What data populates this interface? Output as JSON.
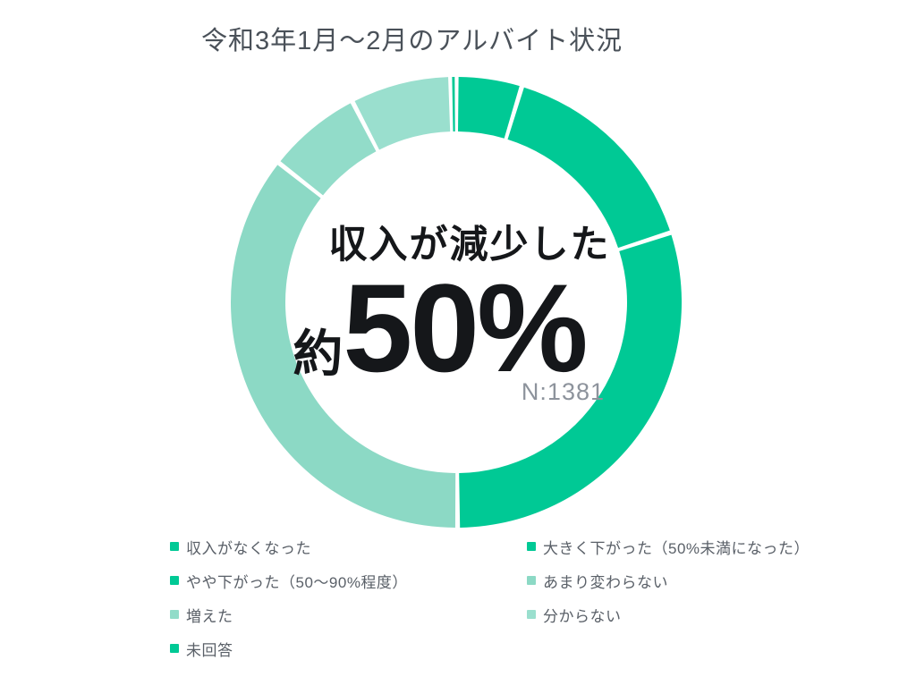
{
  "chart_data": {
    "type": "pie",
    "subtype": "donut",
    "title": "令和3年1月〜2月のアルバイト状況",
    "center": {
      "line1": "収入が減少した",
      "prefix": "約",
      "value": "50%",
      "sample": "N:1381"
    },
    "start_angle_deg": 0,
    "direction": "clockwise",
    "outer_radius_px": 252,
    "inner_radius_px": 191,
    "gap_color": "#ffffff",
    "segments": [
      {
        "label": "収入がなくなった",
        "value": 4.7,
        "color": "#00c995"
      },
      {
        "label": "大きく下がった（50%未満になった）",
        "value": 15.3,
        "color": "#00c995"
      },
      {
        "label": "やや下がった（50〜90%程度）",
        "value": 29.9,
        "color": "#00c995"
      },
      {
        "label": "あまり変わらない",
        "value": 35.7,
        "color": "#8cd9c5"
      },
      {
        "label": "増えた",
        "value": 6.8,
        "color": "#92dcc9"
      },
      {
        "label": "分からない",
        "value": 7.2,
        "color": "#9adfce"
      },
      {
        "label": "未回答",
        "value": 0.4,
        "color": "#00c995"
      }
    ],
    "legend": {
      "position": "bottom",
      "columns": 2
    }
  }
}
